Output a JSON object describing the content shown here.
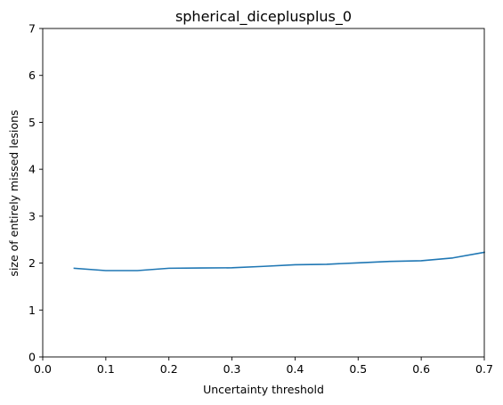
{
  "chart_data": {
    "type": "line",
    "title": "spherical_diceplusplus_0",
    "xlabel": "Uncertainty threshold",
    "ylabel": "size of entirely missed lesions",
    "xlim": [
      0.0,
      0.7
    ],
    "ylim": [
      0,
      7
    ],
    "xticks": [
      "0.0",
      "0.1",
      "0.2",
      "0.3",
      "0.4",
      "0.5",
      "0.6",
      "0.7"
    ],
    "yticks": [
      "0",
      "1",
      "2",
      "3",
      "4",
      "5",
      "6",
      "7"
    ],
    "grid": false,
    "series": [
      {
        "color": "#1f77b4",
        "x": [
          0.05,
          0.1,
          0.15,
          0.2,
          0.25,
          0.3,
          0.35,
          0.4,
          0.45,
          0.5,
          0.55,
          0.6,
          0.65,
          0.7
        ],
        "y": [
          1.89,
          1.84,
          1.84,
          1.89,
          1.895,
          1.9,
          1.93,
          1.965,
          1.975,
          2.005,
          2.035,
          2.05,
          2.11,
          2.23
        ]
      }
    ]
  }
}
